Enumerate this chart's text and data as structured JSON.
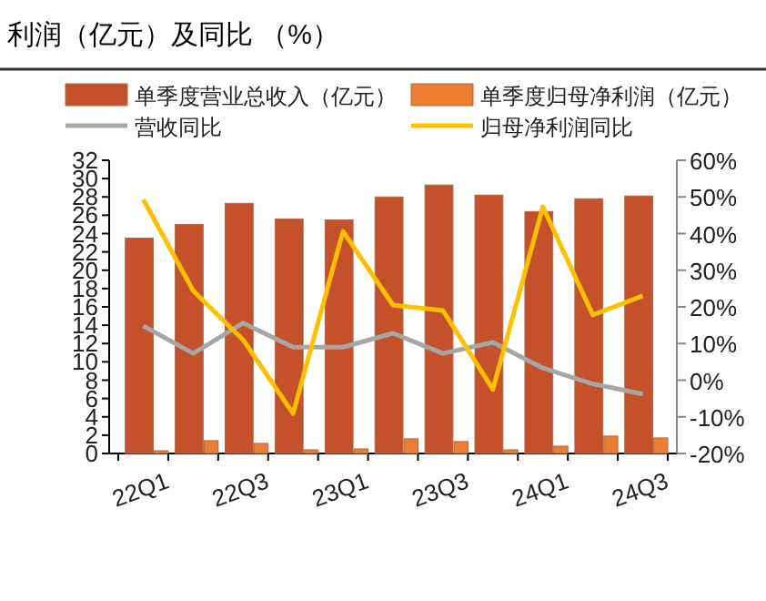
{
  "chart_data": {
    "type": "bar",
    "title": "利润（亿元）及同比  （%）",
    "categories": [
      "22Q1",
      null,
      "22Q3",
      null,
      "23Q1",
      null,
      "23Q3",
      null,
      "24Q1",
      null,
      "24Q3"
    ],
    "series": [
      {
        "name": "单季度营业总收入（亿元）",
        "color": "#c4512a",
        "values": [
          23.5,
          25.0,
          27.3,
          25.6,
          25.5,
          28.0,
          29.3,
          28.2,
          26.4,
          27.8,
          28.1
        ]
      },
      {
        "name": "单季度归母净利润（亿元）",
        "color": "#ed7d31",
        "values": [
          0.3,
          1.4,
          1.1,
          0.4,
          0.5,
          1.6,
          1.3,
          0.4,
          0.8,
          1.9,
          1.7
        ]
      },
      {
        "name": "营收同比",
        "type": "line",
        "axis": "y2",
        "color": "#a6a6a6",
        "values": [
          14.8,
          7.3,
          15.6,
          9.0,
          9.0,
          12.8,
          7.3,
          10.3,
          3.3,
          -1.0,
          -3.8
        ]
      },
      {
        "name": "归母净利润同比",
        "type": "line",
        "axis": "y2",
        "color": "#ffc000",
        "values": [
          49.3,
          24.4,
          11.0,
          -9.1,
          40.6,
          20.5,
          19.0,
          -2.5,
          47.3,
          17.8,
          23.0
        ]
      }
    ],
    "ylim": [
      0,
      32
    ],
    "yticks": [
      0,
      2,
      4,
      6,
      8,
      10,
      12,
      14,
      16,
      18,
      20,
      22,
      24,
      26,
      28,
      30,
      32
    ],
    "y2lim": [
      -20,
      60
    ],
    "y2ticks": [
      {
        "value": -20,
        "label": "-20%"
      },
      {
        "value": -10,
        "label": "-10%"
      },
      {
        "value": 0,
        "label": "0%"
      },
      {
        "value": 10,
        "label": "10%"
      },
      {
        "value": 20,
        "label": "20%"
      },
      {
        "value": 30,
        "label": "30%"
      },
      {
        "value": 40,
        "label": "40%"
      },
      {
        "value": 50,
        "label": "50%"
      },
      {
        "value": 60,
        "label": "60%"
      }
    ],
    "legend": "top",
    "grid": false
  }
}
